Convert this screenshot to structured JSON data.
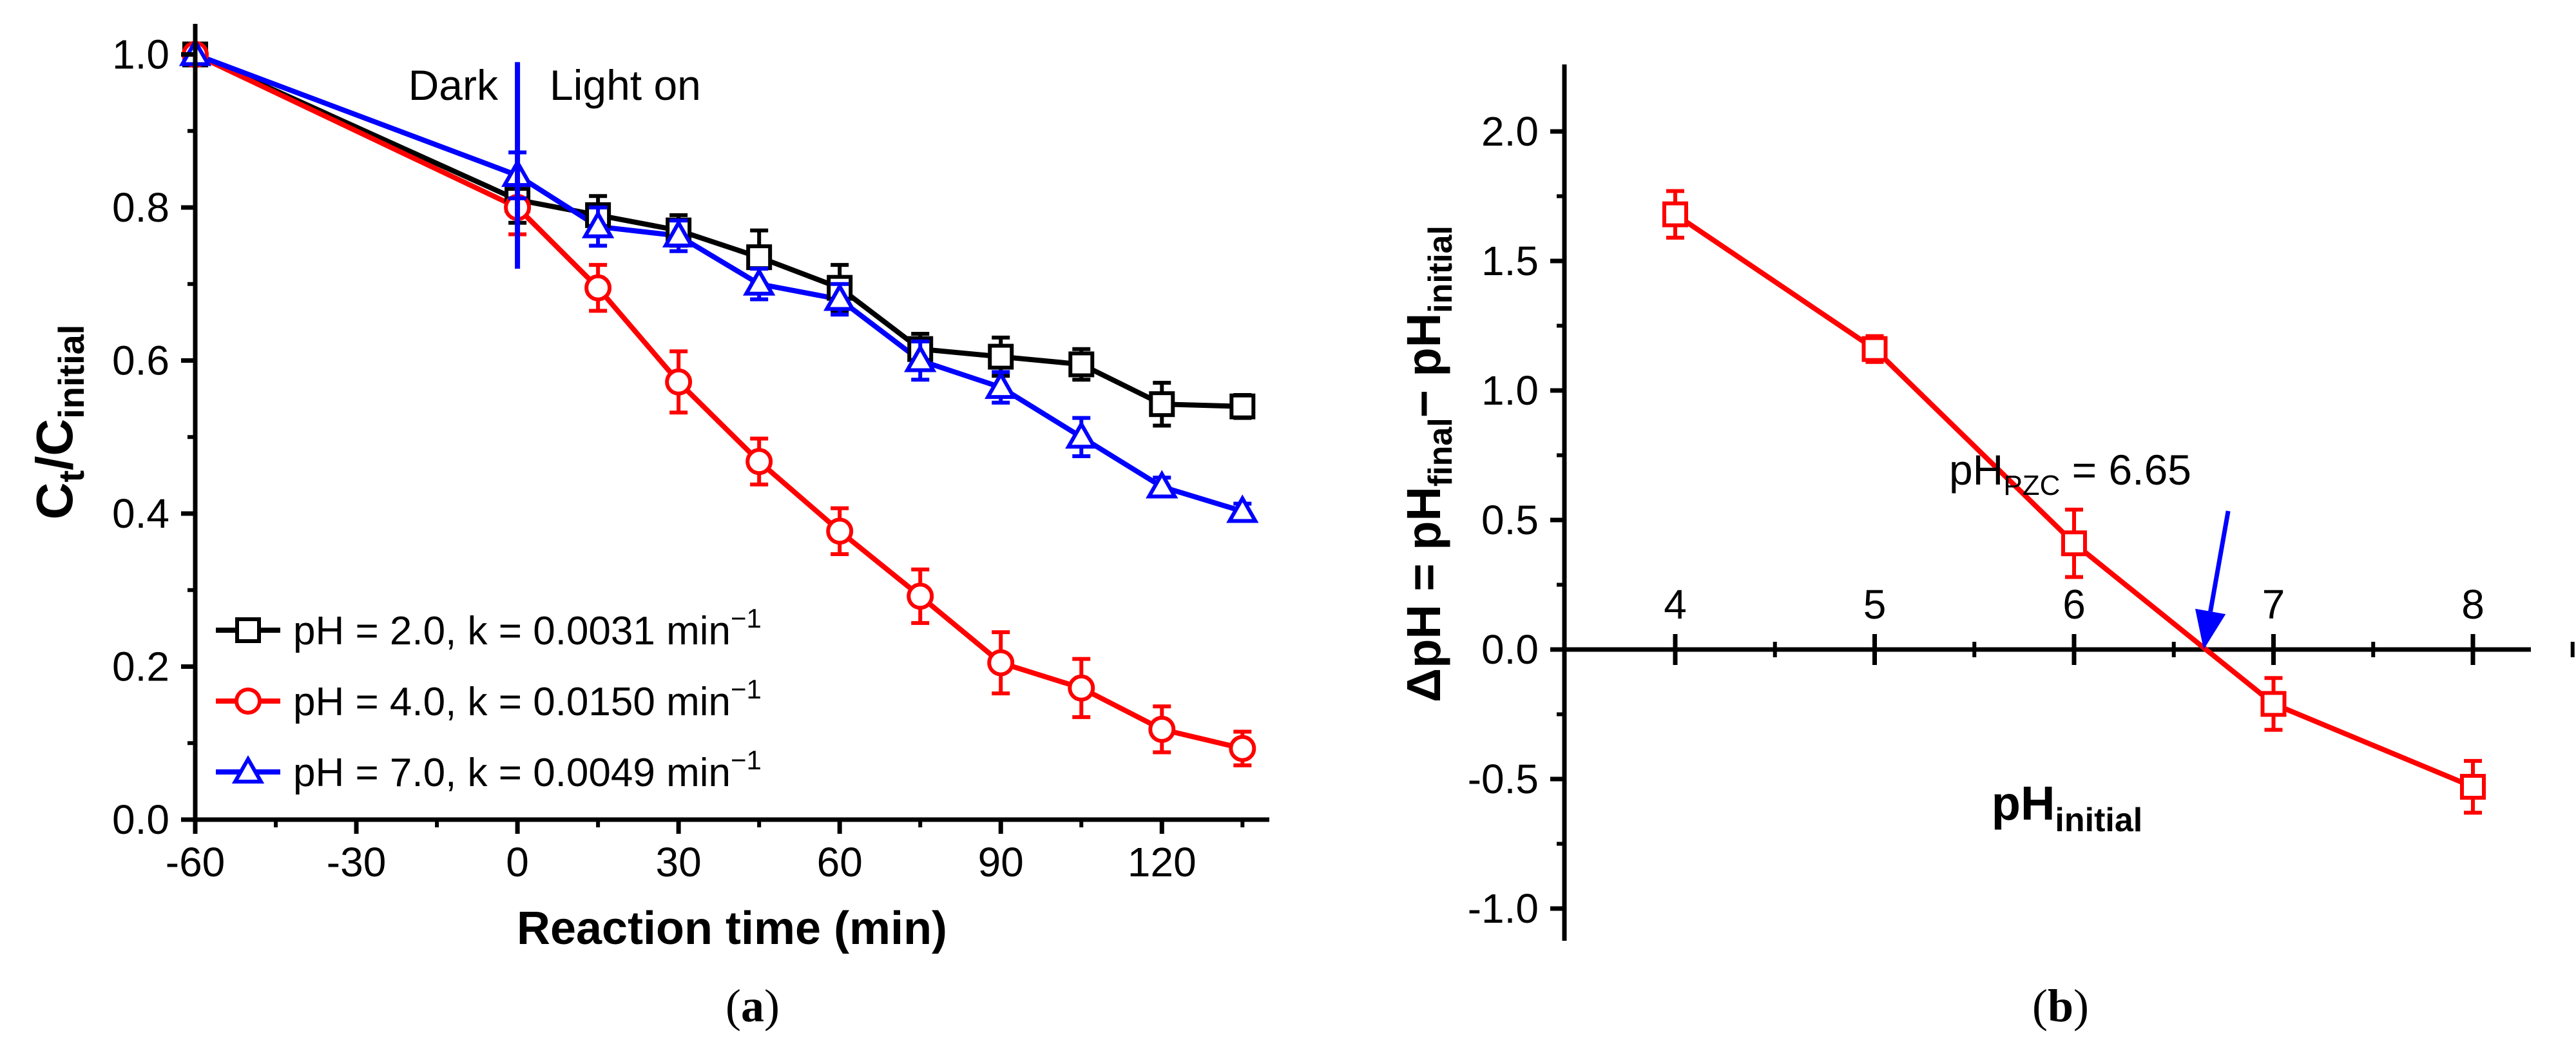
{
  "chart_data": [
    {
      "panel_label": "a",
      "type": "line",
      "title": "",
      "xlabel": "Reaction time (min)",
      "ylabel": {
        "base": "C",
        "sub1": "t",
        "mid": "/C",
        "sub2": "initial"
      },
      "xlim": [
        -60,
        140
      ],
      "ylim": [
        0,
        1.04
      ],
      "xticks": [
        "-60",
        "-30",
        "0",
        "30",
        "60",
        "90",
        "120"
      ],
      "xtick_values": [
        -60,
        -30,
        0,
        30,
        60,
        90,
        120
      ],
      "yticks": [
        "0.0",
        "0.2",
        "0.4",
        "0.6",
        "0.8",
        "1.0"
      ],
      "ytick_values": [
        0,
        0.2,
        0.4,
        0.6,
        0.8,
        1.0
      ],
      "annotations": {
        "dark": "Dark",
        "light_on": "Light on",
        "divider_x": 0,
        "divider_range": [
          0.72,
          0.99
        ]
      },
      "legend_position": "bottom-left",
      "series": [
        {
          "name": "pH = 2.0, k = 0.0031 min",
          "sup": "−1",
          "color": "#000000",
          "marker": "square",
          "x": [
            -60,
            0,
            15,
            30,
            45,
            60,
            75,
            90,
            105,
            120,
            135
          ],
          "y": [
            1.0,
            0.81,
            0.79,
            0.77,
            0.735,
            0.695,
            0.615,
            0.605,
            0.595,
            0.543,
            0.54
          ],
          "err": [
            0.0,
            0.03,
            0.025,
            0.02,
            0.035,
            0.03,
            0.02,
            0.025,
            0.02,
            0.028,
            0.015
          ]
        },
        {
          "name": "pH = 4.0, k = 0.0150 min",
          "sup": "−1",
          "color": "#ff0000",
          "marker": "circle",
          "x": [
            -60,
            0,
            15,
            30,
            45,
            60,
            75,
            90,
            105,
            120,
            135
          ],
          "y": [
            1.0,
            0.8,
            0.695,
            0.572,
            0.468,
            0.377,
            0.292,
            0.205,
            0.172,
            0.118,
            0.093
          ],
          "err": [
            0.0,
            0.035,
            0.03,
            0.04,
            0.03,
            0.03,
            0.035,
            0.04,
            0.038,
            0.03,
            0.022
          ]
        },
        {
          "name": "pH = 7.0, k = 0.0049 min",
          "sup": "−1",
          "color": "#0000ff",
          "marker": "triangle",
          "x": [
            -60,
            0,
            15,
            30,
            45,
            60,
            75,
            90,
            105,
            120,
            135
          ],
          "y": [
            1.0,
            0.842,
            0.775,
            0.763,
            0.7,
            0.68,
            0.6,
            0.565,
            0.5,
            0.435,
            0.403
          ],
          "err": [
            0.0,
            0.03,
            0.025,
            0.02,
            0.02,
            0.02,
            0.025,
            0.02,
            0.025,
            0.012,
            0.01
          ]
        }
      ]
    },
    {
      "panel_label": "b",
      "type": "line",
      "title": "",
      "xlabel": {
        "base": "pH",
        "sub": "initial"
      },
      "ylabel": {
        "prefix": "ΔpH = pH",
        "sub1": "final",
        "dash": "− pH",
        "sub2": "initial"
      },
      "xlim": [
        3.5,
        8.5
      ],
      "ylim": [
        -1.12,
        2.3
      ],
      "xticks": [
        "4",
        "5",
        "6",
        "7",
        "8"
      ],
      "xtick_values": [
        4,
        5,
        6,
        7,
        8
      ],
      "x_minor_values": [
        4.5,
        5.5,
        6.5,
        7.5,
        8.5
      ],
      "yticks": [
        "-1.0",
        "-0.5",
        "0.0",
        "0.5",
        "1.0",
        "1.5",
        "2.0"
      ],
      "ytick_values": [
        -1.0,
        -0.5,
        0.0,
        0.5,
        1.0,
        1.5,
        2.0
      ],
      "annotation": {
        "base": "pH",
        "sub": "PZC",
        "suffix": " = 6.65",
        "x": 6.65,
        "y": 0.0,
        "arrow_color": "#0000ff"
      },
      "series": [
        {
          "name": "ΔpH",
          "color": "#ff0000",
          "marker": "square",
          "x": [
            4,
            5,
            6,
            7,
            8
          ],
          "y": [
            1.68,
            1.16,
            0.41,
            -0.21,
            -0.53
          ],
          "err": [
            0.09,
            0.05,
            0.13,
            0.1,
            0.1
          ]
        }
      ]
    }
  ]
}
